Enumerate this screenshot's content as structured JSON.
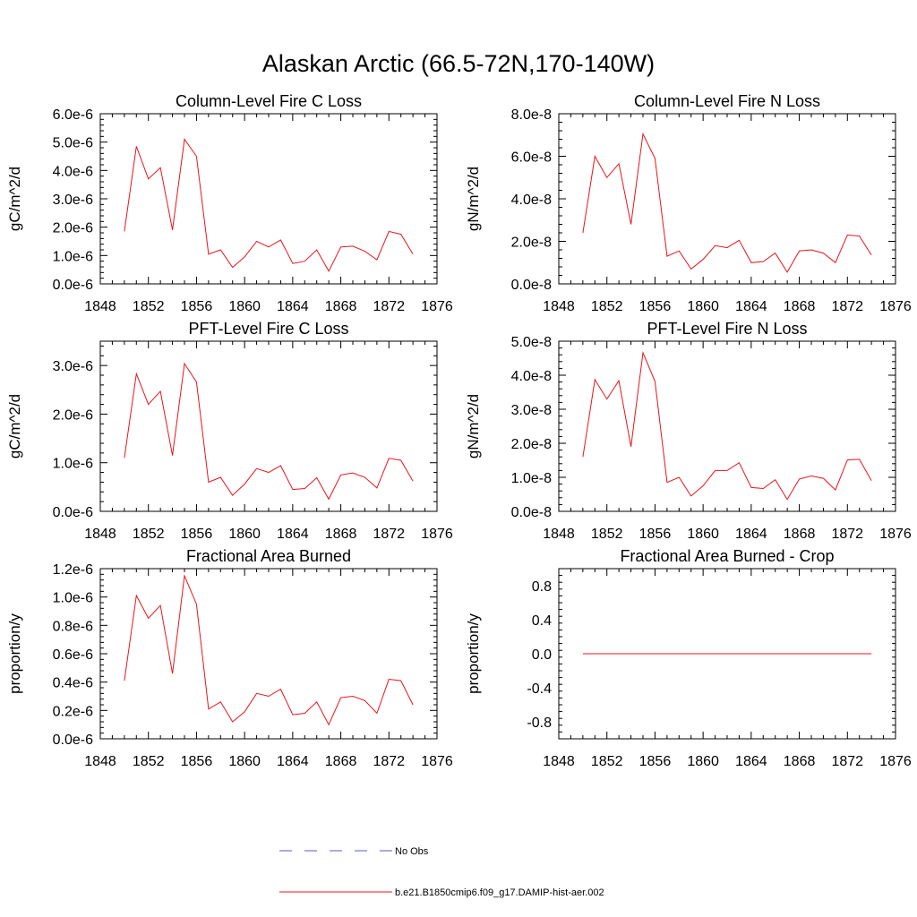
{
  "figure": {
    "title": "Alaskan Arctic (66.5-72N,170-140W)"
  },
  "colors": {
    "model_line": "#e8141c",
    "obs_line": "#5a5acb",
    "axis": "#000000"
  },
  "legend": {
    "placement": "bottom-center",
    "entries": [
      {
        "label": "No Obs",
        "style": "dashed",
        "color": "#5a5acb"
      },
      {
        "label": "b.e21.B1850cmip6.f09_g17.DAMIP-hist-aer.002",
        "style": "solid",
        "color": "#e8141c"
      }
    ]
  },
  "chart_data": [
    {
      "type": "line",
      "title": "Column-Level Fire C Loss",
      "xlabel": "",
      "ylabel": "gC/m^2/d",
      "xlim": [
        1848,
        1876
      ],
      "xticks": [
        1848,
        1852,
        1856,
        1860,
        1864,
        1868,
        1872,
        1876
      ],
      "ylim": [
        0,
        6e-06
      ],
      "yticks": [
        0,
        1e-06,
        2e-06,
        3e-06,
        4e-06,
        5e-06,
        6e-06
      ],
      "yticklabels": [
        "0.0e-6",
        "1.0e-6",
        "2.0e-6",
        "3.0e-6",
        "4.0e-6",
        "5.0e-6",
        "6.0e-6"
      ],
      "x": [
        1850,
        1851,
        1852,
        1853,
        1854,
        1855,
        1856,
        1857,
        1858,
        1859,
        1860,
        1861,
        1862,
        1863,
        1864,
        1865,
        1866,
        1867,
        1868,
        1869,
        1870,
        1871,
        1872,
        1873,
        1874
      ],
      "series": [
        {
          "values": [
            1.85e-06,
            4.85e-06,
            3.7e-06,
            4.1e-06,
            1.9e-06,
            5.1e-06,
            4.5e-06,
            1.05e-06,
            1.2e-06,
            5.8e-07,
            9.5e-07,
            1.5e-06,
            1.3e-06,
            1.55e-06,
            7.2e-07,
            8e-07,
            1.2e-06,
            4.5e-07,
            1.3e-06,
            1.33e-06,
            1.15e-06,
            8.5e-07,
            1.85e-06,
            1.75e-06,
            1.05e-06
          ]
        }
      ]
    },
    {
      "type": "line",
      "title": "Column-Level Fire N Loss",
      "xlabel": "",
      "ylabel": "gN/m^2/d",
      "xlim": [
        1848,
        1876
      ],
      "xticks": [
        1848,
        1852,
        1856,
        1860,
        1864,
        1868,
        1872,
        1876
      ],
      "ylim": [
        0,
        8e-08
      ],
      "yticks": [
        0,
        2e-08,
        4e-08,
        6e-08,
        8e-08
      ],
      "yticklabels": [
        "0.0e-8",
        "2.0e-8",
        "4.0e-8",
        "6.0e-8",
        "8.0e-8"
      ],
      "x": [
        1850,
        1851,
        1852,
        1853,
        1854,
        1855,
        1856,
        1857,
        1858,
        1859,
        1860,
        1861,
        1862,
        1863,
        1864,
        1865,
        1866,
        1867,
        1868,
        1869,
        1870,
        1871,
        1872,
        1873,
        1874
      ],
      "series": [
        {
          "values": [
            2.4e-08,
            6e-08,
            5e-08,
            5.65e-08,
            2.8e-08,
            7.05e-08,
            5.9e-08,
            1.3e-08,
            1.55e-08,
            7e-09,
            1.15e-08,
            1.8e-08,
            1.7e-08,
            2.05e-08,
            1e-08,
            1.05e-08,
            1.45e-08,
            5.5e-09,
            1.55e-08,
            1.6e-08,
            1.45e-08,
            1e-08,
            2.3e-08,
            2.25e-08,
            1.35e-08
          ]
        }
      ]
    },
    {
      "type": "line",
      "title": "PFT-Level Fire C Loss",
      "xlabel": "",
      "ylabel": "gC/m^2/d",
      "xlim": [
        1848,
        1876
      ],
      "xticks": [
        1848,
        1852,
        1856,
        1860,
        1864,
        1868,
        1872,
        1876
      ],
      "ylim": [
        0,
        3.5e-06
      ],
      "yticks": [
        0,
        1e-06,
        2e-06,
        3e-06
      ],
      "yticklabels": [
        "0.0e-6",
        "1.0e-6",
        "2.0e-6",
        "3.0e-6"
      ],
      "x": [
        1850,
        1851,
        1852,
        1853,
        1854,
        1855,
        1856,
        1857,
        1858,
        1859,
        1860,
        1861,
        1862,
        1863,
        1864,
        1865,
        1866,
        1867,
        1868,
        1869,
        1870,
        1871,
        1872,
        1873,
        1874
      ],
      "series": [
        {
          "values": [
            1.1e-06,
            2.83e-06,
            2.2e-06,
            2.47e-06,
            1.15e-06,
            3.04e-06,
            2.66e-06,
            6e-07,
            7e-07,
            3.3e-07,
            5.6e-07,
            8.8e-07,
            8e-07,
            9.4e-07,
            4.5e-07,
            4.7e-07,
            6.9e-07,
            2.5e-07,
            7.5e-07,
            7.9e-07,
            7e-07,
            4.8e-07,
            1.09e-06,
            1.05e-06,
            6.2e-07
          ]
        }
      ]
    },
    {
      "type": "line",
      "title": "PFT-Level Fire N Loss",
      "xlabel": "",
      "ylabel": "gN/m^2/d",
      "xlim": [
        1848,
        1876
      ],
      "xticks": [
        1848,
        1852,
        1856,
        1860,
        1864,
        1868,
        1872,
        1876
      ],
      "ylim": [
        0,
        5e-08
      ],
      "yticks": [
        0,
        1e-08,
        2e-08,
        3e-08,
        4e-08,
        5e-08
      ],
      "yticklabels": [
        "0.0e-8",
        "1.0e-8",
        "2.0e-8",
        "3.0e-8",
        "4.0e-8",
        "5.0e-8"
      ],
      "x": [
        1850,
        1851,
        1852,
        1853,
        1854,
        1855,
        1856,
        1857,
        1858,
        1859,
        1860,
        1861,
        1862,
        1863,
        1864,
        1865,
        1866,
        1867,
        1868,
        1869,
        1870,
        1871,
        1872,
        1873,
        1874
      ],
      "series": [
        {
          "values": [
            1.6e-08,
            3.87e-08,
            3.3e-08,
            3.84e-08,
            1.9e-08,
            4.66e-08,
            3.82e-08,
            8.5e-09,
            1e-08,
            4.5e-09,
            7.5e-09,
            1.2e-08,
            1.2e-08,
            1.43e-08,
            7e-09,
            6.7e-09,
            9.3e-09,
            3.5e-09,
            9.5e-09,
            1.04e-08,
            9.7e-09,
            6.3e-09,
            1.51e-08,
            1.53e-08,
            9e-09
          ]
        }
      ]
    },
    {
      "type": "line",
      "title": "Fractional Area Burned",
      "xlabel": "",
      "ylabel": "proportion/y",
      "xlim": [
        1848,
        1876
      ],
      "xticks": [
        1848,
        1852,
        1856,
        1860,
        1864,
        1868,
        1872,
        1876
      ],
      "ylim": [
        0,
        1.2e-06
      ],
      "yticks": [
        0,
        2e-07,
        4e-07,
        6e-07,
        8e-07,
        1e-06,
        1.2e-06
      ],
      "yticklabels": [
        "0.0e-6",
        "0.2e-6",
        "0.4e-6",
        "0.6e-6",
        "0.8e-6",
        "1.0e-6",
        "1.2e-6"
      ],
      "x": [
        1850,
        1851,
        1852,
        1853,
        1854,
        1855,
        1856,
        1857,
        1858,
        1859,
        1860,
        1861,
        1862,
        1863,
        1864,
        1865,
        1866,
        1867,
        1868,
        1869,
        1870,
        1871,
        1872,
        1873,
        1874
      ],
      "series": [
        {
          "values": [
            4.1e-07,
            1.01e-06,
            8.5e-07,
            9.4e-07,
            4.6e-07,
            1.15e-06,
            9.5e-07,
            2.1e-07,
            2.6e-07,
            1.2e-07,
            1.9e-07,
            3.2e-07,
            3e-07,
            3.5e-07,
            1.7e-07,
            1.8e-07,
            2.6e-07,
            1e-07,
            2.9e-07,
            3e-07,
            2.7e-07,
            1.8e-07,
            4.2e-07,
            4.1e-07,
            2.4e-07
          ]
        }
      ]
    },
    {
      "type": "line",
      "title": "Fractional Area Burned - Crop",
      "xlabel": "",
      "ylabel": "proportion/y",
      "xlim": [
        1848,
        1876
      ],
      "xticks": [
        1848,
        1852,
        1856,
        1860,
        1864,
        1868,
        1872,
        1876
      ],
      "ylim": [
        -1.0,
        1.0
      ],
      "yticks": [
        -0.8,
        -0.4,
        0.0,
        0.4,
        0.8
      ],
      "yticklabels": [
        "-0.8",
        "-0.4",
        "0.0",
        "0.4",
        "0.8"
      ],
      "x": [
        1850,
        1851,
        1852,
        1853,
        1854,
        1855,
        1856,
        1857,
        1858,
        1859,
        1860,
        1861,
        1862,
        1863,
        1864,
        1865,
        1866,
        1867,
        1868,
        1869,
        1870,
        1871,
        1872,
        1873,
        1874
      ],
      "series": [
        {
          "values": [
            0,
            0,
            0,
            0,
            0,
            0,
            0,
            0,
            0,
            0,
            0,
            0,
            0,
            0,
            0,
            0,
            0,
            0,
            0,
            0,
            0,
            0,
            0,
            0,
            0
          ]
        }
      ]
    }
  ]
}
